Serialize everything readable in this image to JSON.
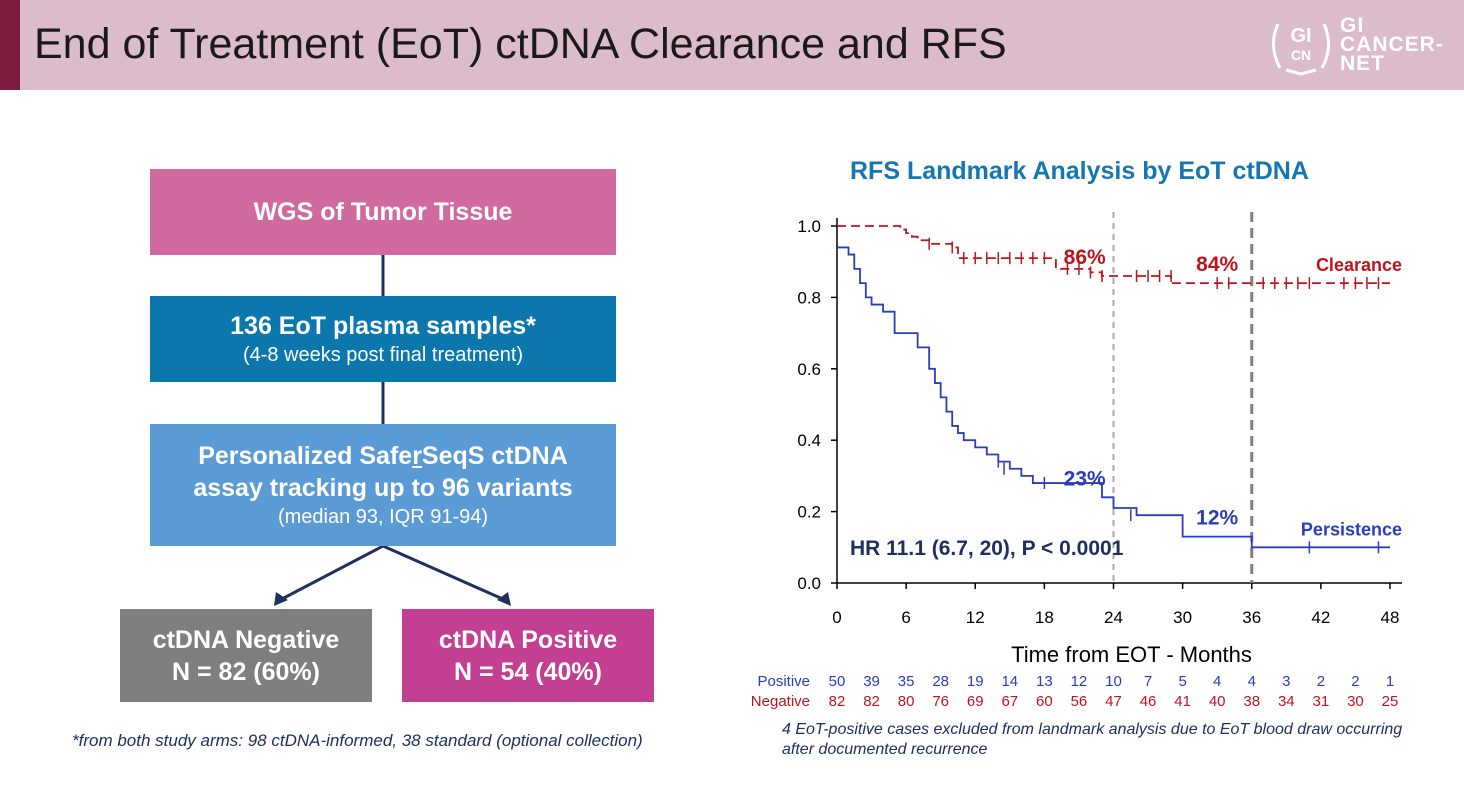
{
  "slide": {
    "title": "End of Treatment (EoT) ctDNA Clearance and RFS",
    "logo": {
      "mark_top": "GI",
      "mark_bottom": "CN",
      "text_line1": "GI",
      "text_line2": "CANCER-",
      "text_line3": "NET"
    }
  },
  "flow": {
    "box1": "WGS of Tumor Tissue",
    "box2_line1": "136 EoT plasma samples*",
    "box2_line2": "(4-8 weeks post final treatment)",
    "box3_line1_pre": "Personalized Safe",
    "box3_line1_u": "r",
    "box3_line1_post": "SeqS ctDNA",
    "box3_line2": "assay tracking up to 96 variants",
    "box3_line3": "(median 93, IQR 91-94)",
    "neg_line1": "ctDNA Negative",
    "neg_line2": "N = 82 (60%)",
    "pos_line1": "ctDNA Positive",
    "pos_line2": "N = 54 (40%)",
    "footnote": "*from both study arms: 98 ctDNA-informed, 38 standard (optional collection)"
  },
  "chart_data": {
    "type": "line",
    "title": "RFS Landmark Analysis by EoT ctDNA",
    "xlabel": "Time from EOT - Months",
    "ylabel": "",
    "xlim": [
      0,
      48
    ],
    "ylim": [
      0,
      1.0
    ],
    "xticks": [
      0,
      6,
      12,
      18,
      24,
      30,
      36,
      42,
      48
    ],
    "yticks": [
      "0.0",
      "0.2",
      "0.4",
      "0.6",
      "0.8",
      "1.0"
    ],
    "landmarks": [
      24,
      36
    ],
    "series": [
      {
        "name": "Clearance",
        "color": "#c0141c",
        "dash": true,
        "x": [
          0,
          5,
          5.5,
          6,
          6.5,
          7,
          8,
          10,
          10.5,
          18,
          19,
          22,
          23,
          29,
          48
        ],
        "y": [
          1.0,
          1.0,
          0.99,
          0.98,
          0.97,
          0.96,
          0.95,
          0.94,
          0.91,
          0.91,
          0.88,
          0.87,
          0.86,
          0.84,
          0.84
        ],
        "censors": [
          [
            8,
            0.95
          ],
          [
            10,
            0.94
          ],
          [
            11,
            0.91
          ],
          [
            12,
            0.91
          ],
          [
            13,
            0.91
          ],
          [
            14,
            0.91
          ],
          [
            15,
            0.91
          ],
          [
            16,
            0.91
          ],
          [
            17,
            0.91
          ],
          [
            18,
            0.91
          ],
          [
            20,
            0.88
          ],
          [
            21,
            0.88
          ],
          [
            22,
            0.87
          ],
          [
            23,
            0.86
          ],
          [
            26,
            0.86
          ],
          [
            27,
            0.86
          ],
          [
            28,
            0.86
          ],
          [
            29,
            0.86
          ],
          [
            33,
            0.84
          ],
          [
            34,
            0.84
          ],
          [
            37,
            0.84
          ],
          [
            38,
            0.84
          ],
          [
            39,
            0.84
          ],
          [
            40,
            0.84
          ],
          [
            41,
            0.84
          ],
          [
            44,
            0.84
          ],
          [
            45,
            0.84
          ],
          [
            46,
            0.84
          ],
          [
            47,
            0.84
          ]
        ],
        "annotations": [
          {
            "x": 21.5,
            "y": 0.86,
            "text": "86%"
          },
          {
            "x": 33,
            "y": 0.84,
            "text": "84%"
          }
        ],
        "end_label": "Clearance"
      },
      {
        "name": "Persistence",
        "color": "#2a3dbb",
        "dash": false,
        "x": [
          0,
          1,
          1.5,
          2,
          2.5,
          3,
          4,
          5,
          7,
          8,
          8.5,
          9,
          9.5,
          10,
          10.5,
          11,
          12,
          13,
          14,
          15,
          16,
          17,
          23,
          24,
          26,
          30,
          36,
          48
        ],
        "y": [
          0.94,
          0.92,
          0.88,
          0.84,
          0.8,
          0.78,
          0.76,
          0.7,
          0.66,
          0.6,
          0.56,
          0.52,
          0.48,
          0.44,
          0.42,
          0.4,
          0.38,
          0.36,
          0.34,
          0.32,
          0.3,
          0.28,
          0.24,
          0.21,
          0.19,
          0.13,
          0.1,
          0.1
        ],
        "censors": [
          [
            14,
            0.34
          ],
          [
            14.5,
            0.32
          ],
          [
            18,
            0.28
          ],
          [
            25.5,
            0.19
          ],
          [
            41,
            0.1
          ],
          [
            47,
            0.1
          ]
        ],
        "annotations": [
          {
            "x": 21.5,
            "y": 0.24,
            "text": "23%"
          },
          {
            "x": 33,
            "y": 0.13,
            "text": "12%"
          }
        ],
        "end_label": "Persistence"
      }
    ],
    "hr_text": "HR 11.1 (6.7, 20), P < 0.0001",
    "risk_table": {
      "x": [
        0,
        3,
        6,
        9,
        12,
        15,
        18,
        21,
        24,
        27,
        30,
        33,
        36,
        39,
        42,
        45,
        48
      ],
      "rows": [
        {
          "label": "Positive",
          "color": "#2a3dbb",
          "values": [
            "50",
            "39",
            "35",
            "28",
            "19",
            "14",
            "13",
            "12",
            "10",
            "7",
            "5",
            "4",
            "4",
            "3",
            "2",
            "2",
            "1"
          ]
        },
        {
          "label": "Negative",
          "color": "#c0141c",
          "values": [
            "82",
            "82",
            "80",
            "76",
            "69",
            "67",
            "60",
            "56",
            "47",
            "46",
            "41",
            "40",
            "38",
            "34",
            "31",
            "30",
            "25"
          ]
        }
      ]
    },
    "exclusion_note": "4 EoT-positive cases excluded from landmark analysis due to EoT blood draw occurring after documented recurrence"
  }
}
